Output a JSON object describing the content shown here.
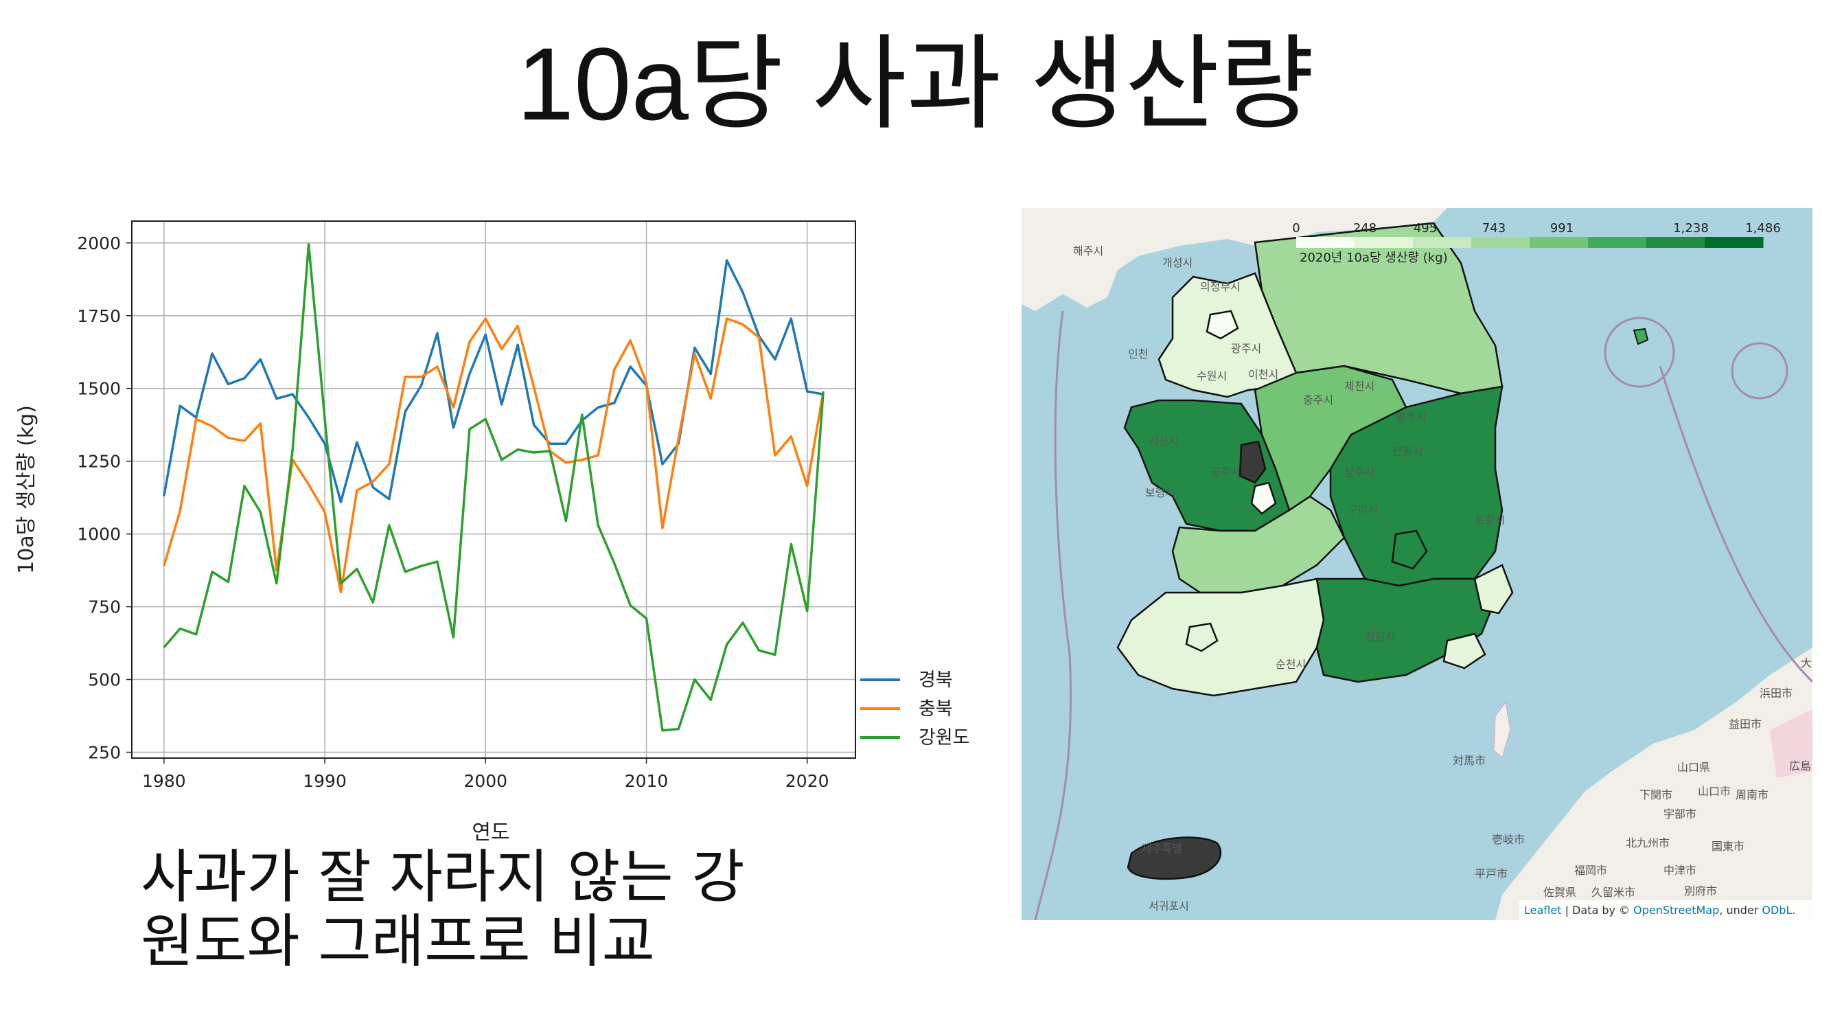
{
  "slide": {
    "title": "10a당 사과 생산량",
    "caption_line1": "사과가 잘 자라지 않는 강",
    "caption_line2": "원도와 그래프로 비교"
  },
  "chart_data": {
    "type": "line",
    "title": "",
    "xlabel": "연도",
    "ylabel": "10a당 생산량 (kg)",
    "xlim": [
      1978,
      2023
    ],
    "ylim": [
      230,
      2075
    ],
    "xticks": [
      1980,
      1990,
      2000,
      2010,
      2020
    ],
    "yticks": [
      250,
      500,
      750,
      1000,
      1250,
      1500,
      1750,
      2000
    ],
    "grid": true,
    "legend_position": "outside-right-bottom",
    "x": [
      1980,
      1981,
      1982,
      1983,
      1984,
      1985,
      1986,
      1987,
      1988,
      1989,
      1990,
      1991,
      1992,
      1993,
      1994,
      1995,
      1996,
      1997,
      1998,
      1999,
      2000,
      2001,
      2002,
      2003,
      2004,
      2005,
      2006,
      2007,
      2008,
      2009,
      2010,
      2011,
      2012,
      2013,
      2014,
      2015,
      2016,
      2017,
      2018,
      2019,
      2020,
      2021
    ],
    "series": [
      {
        "name": "경북",
        "color": "#1f77b4",
        "values": [
          1130,
          1440,
          1400,
          1620,
          1515,
          1535,
          1600,
          1465,
          1480,
          1400,
          1310,
          1110,
          1315,
          1160,
          1120,
          1420,
          1510,
          1690,
          1365,
          1550,
          1685,
          1445,
          1650,
          1375,
          1310,
          1310,
          1390,
          1435,
          1450,
          1575,
          1510,
          1240,
          1310,
          1640,
          1550,
          1940,
          1830,
          1680,
          1600,
          1740,
          1490,
          1480
        ]
      },
      {
        "name": "충북",
        "color": "#ff7f0e",
        "values": [
          890,
          1080,
          1395,
          1370,
          1330,
          1320,
          1380,
          875,
          1255,
          1170,
          1075,
          800,
          1150,
          1180,
          1240,
          1540,
          1540,
          1575,
          1435,
          1660,
          1740,
          1635,
          1715,
          1505,
          1285,
          1245,
          1255,
          1270,
          1565,
          1665,
          1520,
          1020,
          1330,
          1620,
          1465,
          1740,
          1720,
          1675,
          1270,
          1335,
          1165,
          1490
        ]
      },
      {
        "name": "강원도",
        "color": "#2ca02c",
        "values": [
          610,
          675,
          655,
          870,
          835,
          1165,
          1075,
          830,
          1290,
          1995,
          1395,
          830,
          880,
          765,
          1030,
          870,
          890,
          905,
          645,
          1360,
          1395,
          1255,
          1290,
          1280,
          1285,
          1045,
          1410,
          1030,
          900,
          755,
          710,
          325,
          330,
          500,
          430,
          620,
          695,
          600,
          585,
          965,
          735,
          1490
        ]
      }
    ]
  },
  "map": {
    "colorbar_title": "2020년 10a당 생산량 (kg)",
    "colorbar_ticks": [
      "0",
      "248",
      "495",
      "743",
      "991",
      "1,238",
      "1,486"
    ],
    "colorbar_colors": [
      "#f7fcf5",
      "#e5f5d9",
      "#c7e9c0",
      "#a1d99b",
      "#74c476",
      "#41ab5d",
      "#238b45",
      "#006d2c"
    ],
    "attribution_leaflet": "Leaflet",
    "attribution_text": " | Data by © ",
    "attribution_osm": "OpenStreetMap",
    "attribution_under": ", under ",
    "attribution_odbl": "ODbL.",
    "city_labels": {
      "haeju": "해주시",
      "gaeseong": "개성시",
      "uijeongbu": "의정부시",
      "incheon": "인천",
      "gwangju_g": "광주시",
      "suwon": "수원시",
      "icheon": "이천시",
      "chungju": "충주시",
      "jecheon": "제천시",
      "andong": "안동시",
      "yeongju": "영주시",
      "sangju": "상주시",
      "gongju": "공주시",
      "seosan": "서산시",
      "boryeong": "보령시",
      "gumi": "구미시",
      "pohang": "포항시",
      "changwon": "창원시",
      "suncheon": "순천시",
      "jeju_label": "제주특별",
      "seogwipo": "서귀포시",
      "tsushima": "対馬市",
      "fukuoka": "福岡市",
      "kitakyushu": "北九州市",
      "shimonoseki": "下関市",
      "yamaguchi": "山口県",
      "hamada": "浜田市",
      "masuda": "益田市",
      "iki": "壱岐市",
      "hirado": "平戸市",
      "saga": "佐賀県",
      "kurume": "久留米市",
      "nakatsu": "中津市",
      "beppu": "別府市",
      "ube": "宇部市",
      "shunan": "周南市",
      "kokuto": "国東市",
      "yamaguchi_c": "山口市",
      "hiroshima": "広島",
      "da": "大"
    }
  }
}
